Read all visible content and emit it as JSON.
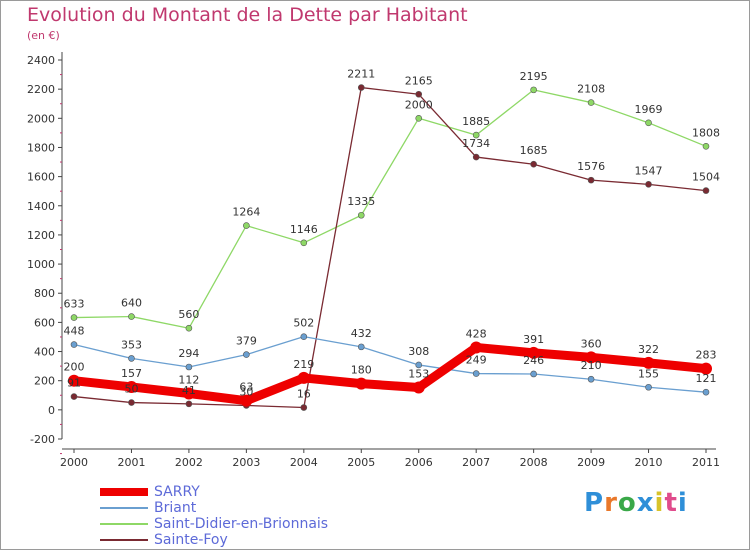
{
  "title": "Evolution du Montant de la Dette par Habitant",
  "subtitle": "(en €)",
  "logo": {
    "text": "Proxiti",
    "colors": [
      "#2f8fd8",
      "#e9782a",
      "#3aa848",
      "#2f8fd8",
      "#d8c32a",
      "#e04b8c",
      "#2f8fd8"
    ]
  },
  "chart_data": {
    "type": "line",
    "categories": [
      "2000",
      "2001",
      "2002",
      "2003",
      "2004",
      "2005",
      "2006",
      "2007",
      "2008",
      "2009",
      "2010",
      "2011"
    ],
    "ylim": [
      -200,
      2400
    ],
    "yticks": [
      -200,
      0,
      200,
      400,
      600,
      800,
      1000,
      1200,
      1400,
      1600,
      1800,
      2000,
      2200,
      2400
    ],
    "grid": "none",
    "legend_position": "bottom-left",
    "series": [
      {
        "name": "SARRY",
        "color": "#ee0000",
        "values": [
          200,
          157,
          112,
          63,
          219,
          180,
          153,
          428,
          391,
          360,
          322,
          283
        ]
      },
      {
        "name": "Briant",
        "color": "#6a9fd0",
        "values": [
          448,
          353,
          294,
          379,
          502,
          432,
          308,
          249,
          246,
          210,
          155,
          121
        ]
      },
      {
        "name": "Saint-Didier-en-Brionnais",
        "color": "#8ed866",
        "values": [
          633,
          640,
          560,
          1264,
          1146,
          1335,
          2000,
          1885,
          2195,
          2108,
          1969,
          1808
        ]
      },
      {
        "name": "Sainte-Foy",
        "color": "#7a2a32",
        "values": [
          91,
          50,
          41,
          30,
          16,
          2211,
          2165,
          1734,
          1685,
          1576,
          1547,
          1504
        ]
      }
    ]
  }
}
